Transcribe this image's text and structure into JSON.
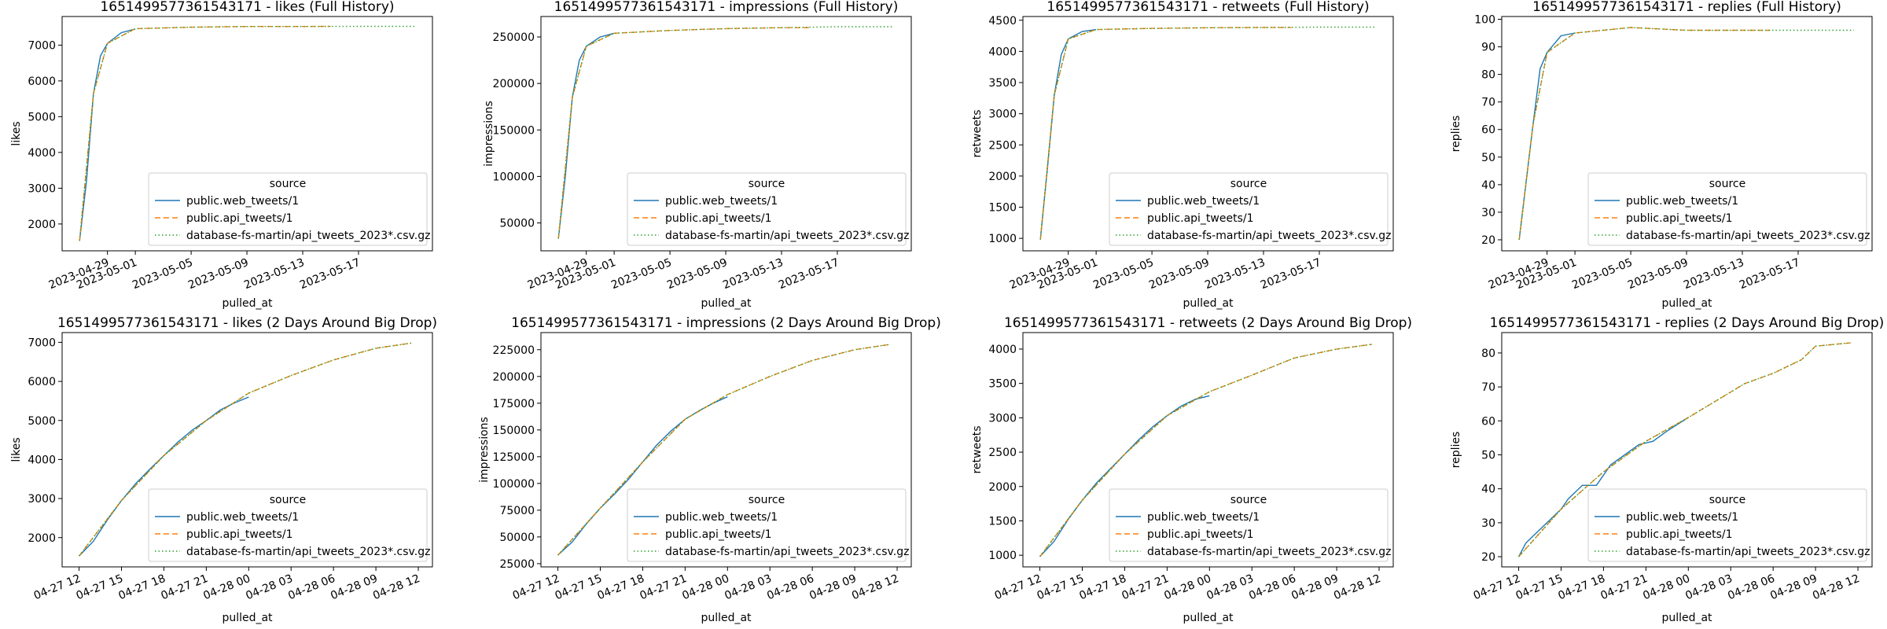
{
  "legend": {
    "title": "source",
    "entries": [
      {
        "label": "public.web_tweets/1",
        "color": "#1f77b4",
        "style": "solid"
      },
      {
        "label": "public.api_tweets/1",
        "color": "#ff7f0e",
        "style": "dashed"
      },
      {
        "label": "database-fs-martin/api_tweets_2023*.csv.gz",
        "color": "#2ca02c",
        "style": "dotted"
      }
    ]
  },
  "chart_data": [
    {
      "type": "line",
      "title": "1651499577361543171 - likes (Full History)",
      "xlabel": "pulled_at",
      "ylabel": "likes",
      "x_ticks": [
        "2023-04-29",
        "2023-05-01",
        "2023-05-05",
        "2023-05-09",
        "2023-05-13",
        "2023-05-17"
      ],
      "y_ticks": [
        2000,
        3000,
        4000,
        5000,
        6000,
        7000
      ],
      "ylim": [
        1250,
        7800
      ],
      "legend_position": "lower right",
      "series": [
        {
          "name": "public.web_tweets/1",
          "x": [
            "2023-04-27",
            "2023-04-27 12:00",
            "2023-04-28",
            "2023-04-28 12:00",
            "2023-04-29",
            "2023-04-30",
            "2023-05-01"
          ],
          "y": [
            1530,
            3200,
            5650,
            6700,
            7050,
            7350,
            7450
          ]
        },
        {
          "name": "public.api_tweets/1",
          "x": [
            "2023-04-27",
            "2023-04-28",
            "2023-04-29",
            "2023-05-01",
            "2023-05-05",
            "2023-05-09",
            "2023-05-13",
            "2023-05-15"
          ],
          "y": [
            1530,
            5650,
            7050,
            7460,
            7500,
            7520,
            7520,
            7525
          ]
        },
        {
          "name": "database-fs-martin/api_tweets_2023*.csv.gz",
          "x": [
            "2023-04-27",
            "2023-04-28",
            "2023-04-29",
            "2023-05-01",
            "2023-05-05",
            "2023-05-09",
            "2023-05-13",
            "2023-05-17",
            "2023-05-21"
          ],
          "y": [
            1530,
            5650,
            7050,
            7460,
            7500,
            7520,
            7520,
            7525,
            7525
          ]
        }
      ]
    },
    {
      "type": "line",
      "title": "1651499577361543171 - impressions (Full History)",
      "xlabel": "pulled_at",
      "ylabel": "impressions",
      "x_ticks": [
        "2023-04-29",
        "2023-05-01",
        "2023-05-05",
        "2023-05-09",
        "2023-05-13",
        "2023-05-17"
      ],
      "y_ticks": [
        50000,
        100000,
        150000,
        200000,
        250000
      ],
      "ylim": [
        20000,
        272000
      ],
      "legend_position": "lower right",
      "series": [
        {
          "name": "public.web_tweets/1",
          "x": [
            "2023-04-27",
            "2023-04-27 12:00",
            "2023-04-28",
            "2023-04-28 12:00",
            "2023-04-29",
            "2023-04-30",
            "2023-05-01"
          ],
          "y": [
            33000,
            100000,
            185000,
            225000,
            240000,
            250000,
            254000
          ]
        },
        {
          "name": "public.api_tweets/1",
          "x": [
            "2023-04-27",
            "2023-04-28",
            "2023-04-29",
            "2023-05-01",
            "2023-05-05",
            "2023-05-09",
            "2023-05-13",
            "2023-05-15"
          ],
          "y": [
            33000,
            185000,
            240000,
            254000,
            257000,
            259000,
            260000,
            260000
          ]
        },
        {
          "name": "database-fs-martin/api_tweets_2023*.csv.gz",
          "x": [
            "2023-04-27",
            "2023-04-28",
            "2023-04-29",
            "2023-05-01",
            "2023-05-05",
            "2023-05-09",
            "2023-05-13",
            "2023-05-17",
            "2023-05-21"
          ],
          "y": [
            33000,
            185000,
            240000,
            254000,
            257000,
            259000,
            260000,
            261000,
            261000
          ]
        }
      ]
    },
    {
      "type": "line",
      "title": "1651499577361543171 - retweets (Full History)",
      "xlabel": "pulled_at",
      "ylabel": "retweets",
      "x_ticks": [
        "2023-04-29",
        "2023-05-01",
        "2023-05-05",
        "2023-05-09",
        "2023-05-13",
        "2023-05-17"
      ],
      "y_ticks": [
        1000,
        1500,
        2000,
        2500,
        3000,
        3500,
        4000,
        4500
      ],
      "ylim": [
        800,
        4560
      ],
      "legend_position": "lower right",
      "series": [
        {
          "name": "public.web_tweets/1",
          "x": [
            "2023-04-27",
            "2023-04-27 12:00",
            "2023-04-28",
            "2023-04-28 12:00",
            "2023-04-29",
            "2023-04-30",
            "2023-05-01"
          ],
          "y": [
            980,
            2100,
            3300,
            3950,
            4200,
            4320,
            4350
          ]
        },
        {
          "name": "public.api_tweets/1",
          "x": [
            "2023-04-27",
            "2023-04-28",
            "2023-04-29",
            "2023-05-01",
            "2023-05-05",
            "2023-05-09",
            "2023-05-13",
            "2023-05-15"
          ],
          "y": [
            980,
            3300,
            4200,
            4350,
            4370,
            4380,
            4385,
            4385
          ]
        },
        {
          "name": "database-fs-martin/api_tweets_2023*.csv.gz",
          "x": [
            "2023-04-27",
            "2023-04-28",
            "2023-04-29",
            "2023-05-01",
            "2023-05-05",
            "2023-05-09",
            "2023-05-13",
            "2023-05-17",
            "2023-05-21"
          ],
          "y": [
            980,
            3300,
            4200,
            4350,
            4370,
            4380,
            4385,
            4390,
            4390
          ]
        }
      ]
    },
    {
      "type": "line",
      "title": "1651499577361543171 - replies (Full History)",
      "xlabel": "pulled_at",
      "ylabel": "replies",
      "x_ticks": [
        "2023-04-29",
        "2023-05-01",
        "2023-05-05",
        "2023-05-09",
        "2023-05-13",
        "2023-05-17"
      ],
      "y_ticks": [
        20,
        30,
        40,
        50,
        60,
        70,
        80,
        90,
        100
      ],
      "ylim": [
        16,
        101
      ],
      "legend_position": "lower right",
      "series": [
        {
          "name": "public.web_tweets/1",
          "x": [
            "2023-04-27",
            "2023-04-27 12:00",
            "2023-04-28",
            "2023-04-28 12:00",
            "2023-04-29",
            "2023-04-30",
            "2023-05-01"
          ],
          "y": [
            20,
            41,
            62,
            82,
            88,
            94,
            95
          ]
        },
        {
          "name": "public.api_tweets/1",
          "x": [
            "2023-04-27",
            "2023-04-28",
            "2023-04-29",
            "2023-05-01",
            "2023-05-03",
            "2023-05-05",
            "2023-05-09",
            "2023-05-13",
            "2023-05-15"
          ],
          "y": [
            20,
            62,
            88,
            95,
            96,
            97,
            96,
            96,
            96
          ]
        },
        {
          "name": "database-fs-martin/api_tweets_2023*.csv.gz",
          "x": [
            "2023-04-27",
            "2023-04-28",
            "2023-04-29",
            "2023-05-01",
            "2023-05-03",
            "2023-05-05",
            "2023-05-09",
            "2023-05-13",
            "2023-05-17",
            "2023-05-21"
          ],
          "y": [
            20,
            62,
            88,
            95,
            96,
            97,
            96,
            96,
            96,
            96
          ]
        }
      ]
    },
    {
      "type": "line",
      "title": "1651499577361543171 - likes (2 Days Around Big Drop)",
      "xlabel": "pulled_at",
      "ylabel": "likes",
      "x_ticks": [
        "04-27 12",
        "04-27 15",
        "04-27 18",
        "04-27 21",
        "04-28 00",
        "04-28 03",
        "04-28 06",
        "04-28 09",
        "04-28 12"
      ],
      "y_ticks": [
        2000,
        3000,
        4000,
        5000,
        6000,
        7000
      ],
      "ylim": [
        1250,
        7250
      ],
      "legend_position": "lower right",
      "series": [
        {
          "name": "public.web_tweets/1",
          "x": [
            "04-27 12:00",
            "04-27 13:00",
            "04-27 14:00",
            "04-27 15:00",
            "04-27 16:00",
            "04-27 17:00",
            "04-27 18:00",
            "04-27 19:00",
            "04-27 20:00",
            "04-27 21:00",
            "04-27 22:00",
            "04-27 23:00",
            "04-28 00:00"
          ],
          "y": [
            1530,
            1900,
            2450,
            2950,
            3380,
            3750,
            4100,
            4450,
            4750,
            5000,
            5270,
            5450,
            5600
          ]
        },
        {
          "name": "public.api_tweets/1",
          "x": [
            "04-27 12:00",
            "04-27 15:00",
            "04-27 18:00",
            "04-27 21:00",
            "04-28 00:00",
            "04-28 03:00",
            "04-28 06:00",
            "04-28 09:00",
            "04-28 11:30"
          ],
          "y": [
            1530,
            2950,
            4100,
            5000,
            5700,
            6150,
            6550,
            6850,
            6980
          ]
        },
        {
          "name": "database-fs-martin/api_tweets_2023*.csv.gz",
          "x": [
            "04-27 12:00",
            "04-27 15:00",
            "04-27 18:00",
            "04-27 21:00",
            "04-28 00:00",
            "04-28 03:00",
            "04-28 06:00",
            "04-28 09:00",
            "04-28 11:30"
          ],
          "y": [
            1530,
            2950,
            4100,
            5000,
            5700,
            6150,
            6550,
            6850,
            6980
          ]
        }
      ]
    },
    {
      "type": "line",
      "title": "1651499577361543171 - impressions (2 Days Around Big Drop)",
      "xlabel": "pulled_at",
      "ylabel": "impressions",
      "x_ticks": [
        "04-27 12",
        "04-27 15",
        "04-27 18",
        "04-27 21",
        "04-28 00",
        "04-28 03",
        "04-28 06",
        "04-28 09",
        "04-28 12"
      ],
      "y_ticks": [
        25000,
        50000,
        75000,
        100000,
        125000,
        150000,
        175000,
        200000,
        225000
      ],
      "ylim": [
        22000,
        241000
      ],
      "legend_position": "lower right",
      "series": [
        {
          "name": "public.web_tweets/1",
          "x": [
            "04-27 12:00",
            "04-27 13:00",
            "04-27 14:00",
            "04-27 15:00",
            "04-27 16:00",
            "04-27 17:00",
            "04-27 18:00",
            "04-27 19:00",
            "04-27 20:00",
            "04-27 21:00",
            "04-27 22:00",
            "04-27 23:00",
            "04-28 00:00"
          ],
          "y": [
            33000,
            45000,
            62000,
            77000,
            90000,
            104000,
            120000,
            136000,
            149000,
            160000,
            168000,
            175000,
            181000
          ]
        },
        {
          "name": "public.api_tweets/1",
          "x": [
            "04-27 12:00",
            "04-27 15:00",
            "04-27 18:00",
            "04-27 21:00",
            "04-28 00:00",
            "04-28 03:00",
            "04-28 06:00",
            "04-28 09:00",
            "04-28 11:30"
          ],
          "y": [
            33000,
            77000,
            120000,
            160000,
            183000,
            200000,
            215000,
            225000,
            230000
          ]
        },
        {
          "name": "database-fs-martin/api_tweets_2023*.csv.gz",
          "x": [
            "04-27 12:00",
            "04-27 15:00",
            "04-27 18:00",
            "04-27 21:00",
            "04-28 00:00",
            "04-28 03:00",
            "04-28 06:00",
            "04-28 09:00",
            "04-28 11:30"
          ],
          "y": [
            33000,
            77000,
            120000,
            160000,
            183000,
            200000,
            215000,
            225000,
            230000
          ]
        }
      ]
    },
    {
      "type": "line",
      "title": "1651499577361543171 - retweets (2 Days Around Big Drop)",
      "xlabel": "pulled_at",
      "ylabel": "retweets",
      "x_ticks": [
        "04-27 12",
        "04-27 15",
        "04-27 18",
        "04-27 21",
        "04-28 00",
        "04-28 03",
        "04-28 06",
        "04-28 09",
        "04-28 12"
      ],
      "y_ticks": [
        1000,
        1500,
        2000,
        2500,
        3000,
        3500,
        4000
      ],
      "ylim": [
        830,
        4240
      ],
      "legend_position": "lower right",
      "series": [
        {
          "name": "public.web_tweets/1",
          "x": [
            "04-27 12:00",
            "04-27 13:00",
            "04-27 14:00",
            "04-27 15:00",
            "04-27 16:00",
            "04-27 17:00",
            "04-27 18:00",
            "04-27 19:00",
            "04-27 20:00",
            "04-27 21:00",
            "04-27 22:00",
            "04-27 23:00",
            "04-28 00:00"
          ],
          "y": [
            980,
            1200,
            1520,
            1800,
            2050,
            2260,
            2470,
            2680,
            2870,
            3030,
            3170,
            3270,
            3320
          ]
        },
        {
          "name": "public.api_tweets/1",
          "x": [
            "04-27 12:00",
            "04-27 15:00",
            "04-27 18:00",
            "04-27 21:00",
            "04-28 00:00",
            "04-28 03:00",
            "04-28 06:00",
            "04-28 09:00",
            "04-28 11:30"
          ],
          "y": [
            980,
            1800,
            2470,
            3030,
            3380,
            3620,
            3870,
            4000,
            4070
          ]
        },
        {
          "name": "database-fs-martin/api_tweets_2023*.csv.gz",
          "x": [
            "04-27 12:00",
            "04-27 15:00",
            "04-27 18:00",
            "04-27 21:00",
            "04-28 00:00",
            "04-28 03:00",
            "04-28 06:00",
            "04-28 09:00",
            "04-28 11:30"
          ],
          "y": [
            980,
            1800,
            2470,
            3030,
            3380,
            3620,
            3870,
            4000,
            4070
          ]
        }
      ]
    },
    {
      "type": "line",
      "title": "1651499577361543171 - replies (2 Days Around Big Drop)",
      "xlabel": "pulled_at",
      "ylabel": "replies",
      "x_ticks": [
        "04-27 12",
        "04-27 15",
        "04-27 18",
        "04-27 21",
        "04-28 00",
        "04-28 03",
        "04-28 06",
        "04-28 09",
        "04-28 12"
      ],
      "y_ticks": [
        20,
        30,
        40,
        50,
        60,
        70,
        80
      ],
      "ylim": [
        17,
        86
      ],
      "legend_position": "lower right",
      "series": [
        {
          "name": "public.web_tweets/1",
          "x": [
            "04-27 12:00",
            "04-27 12:30",
            "04-27 13:00",
            "04-27 14:00",
            "04-27 15:00",
            "04-27 15:30",
            "04-27 16:30",
            "04-27 17:30",
            "04-27 18:30",
            "04-27 19:30",
            "04-27 20:30",
            "04-27 21:30",
            "04-27 22:30",
            "04-28 00:00"
          ],
          "y": [
            20,
            24,
            26,
            30,
            34,
            37,
            41,
            41,
            47,
            50,
            53,
            54,
            57,
            61
          ]
        },
        {
          "name": "public.api_tweets/1",
          "x": [
            "04-27 12:00",
            "04-27 15:00",
            "04-27 18:00",
            "04-27 21:00",
            "04-28 00:00",
            "04-28 02:00",
            "04-28 04:00",
            "04-28 06:00",
            "04-28 08:00",
            "04-28 09:00",
            "04-28 11:30"
          ],
          "y": [
            20,
            34,
            45,
            54,
            61,
            66,
            71,
            74,
            78,
            82,
            83
          ]
        },
        {
          "name": "database-fs-martin/api_tweets_2023*.csv.gz",
          "x": [
            "04-27 12:00",
            "04-27 15:00",
            "04-27 18:00",
            "04-27 21:00",
            "04-28 00:00",
            "04-28 02:00",
            "04-28 04:00",
            "04-28 06:00",
            "04-28 08:00",
            "04-28 09:00",
            "04-28 11:30"
          ],
          "y": [
            20,
            34,
            45,
            54,
            61,
            66,
            71,
            74,
            78,
            82,
            83
          ]
        }
      ]
    }
  ]
}
